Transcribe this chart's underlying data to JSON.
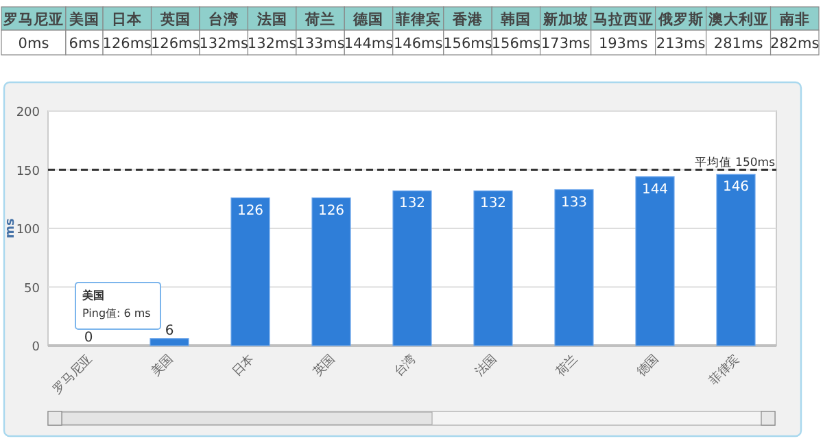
{
  "chart_data": [
    {
      "type": "other",
      "categories": [
        "罗马尼亚",
        "美国",
        "日本",
        "英国",
        "台湾",
        "法国",
        "荷兰",
        "德国",
        "菲律宾",
        "香港",
        "韩国",
        "新加坡",
        "马拉西亚",
        "俄罗斯",
        "澳大利亚",
        "南非"
      ],
      "value_labels": [
        "0ms",
        "6ms",
        "126ms",
        "126ms",
        "132ms",
        "132ms",
        "133ms",
        "144ms",
        "146ms",
        "156ms",
        "156ms",
        "173ms",
        "193ms",
        "213ms",
        "281ms",
        "282ms"
      ]
    },
    {
      "type": "bar",
      "ylabel": "ms",
      "categories": [
        "罗马尼亚",
        "美国",
        "日本",
        "英国",
        "台湾",
        "法国",
        "荷兰",
        "德国",
        "菲律宾"
      ],
      "values": [
        0,
        6,
        126,
        126,
        132,
        132,
        133,
        144,
        146
      ],
      "color": "#2f7ed8",
      "ylim": [
        0,
        200
      ],
      "yticks": [
        0,
        50,
        100,
        150,
        200
      ],
      "grid": "y",
      "data_labels": true,
      "ref_lines": [
        {
          "axis": "y",
          "value": 150,
          "label": "平均值 150ms",
          "line_style": "dashed",
          "color": "#333333"
        }
      ],
      "annotations": [
        "美国",
        "Ping值: 6 ms"
      ]
    }
  ]
}
